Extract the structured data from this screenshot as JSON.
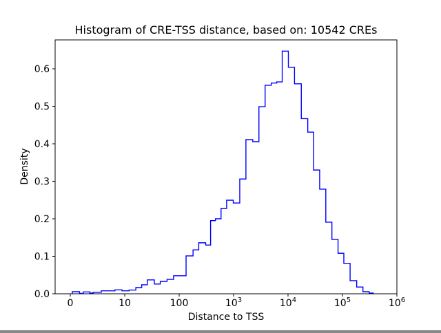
{
  "figure": {
    "background": "#ffffff",
    "frame_color": "#000000"
  },
  "chart_data": {
    "type": "histogram-step",
    "title": "Histogram of CRE-TSS distance, based on: 10542 CREs",
    "xlabel": "Distance to TSS",
    "ylabel": "Density",
    "line_color": "#0000ff",
    "xscale": "symlog",
    "linthresh": 10,
    "ylim": [
      0,
      0.677
    ],
    "xlim": [
      -2.2,
      1000000
    ],
    "grid": false,
    "legend": "none",
    "x_ticks": [
      {
        "value": 0,
        "label": "0"
      },
      {
        "value": 10,
        "label": "10"
      },
      {
        "value": 100,
        "label": "100"
      },
      {
        "value": 1000,
        "label": "10^3"
      },
      {
        "value": 10000,
        "label": "10^4"
      },
      {
        "value": 100000,
        "label": "10^5"
      },
      {
        "value": 1000000,
        "label": "10^6"
      }
    ],
    "y_ticks": [
      {
        "value": 0.0,
        "label": "0.0"
      },
      {
        "value": 0.1,
        "label": "0.1"
      },
      {
        "value": 0.2,
        "label": "0.2"
      },
      {
        "value": 0.3,
        "label": "0.3"
      },
      {
        "value": 0.4,
        "label": "0.4"
      },
      {
        "value": 0.5,
        "label": "0.5"
      },
      {
        "value": 0.6,
        "label": "0.6"
      }
    ],
    "bin_edges": [
      0.37,
      1.7,
      2.4,
      3.6,
      4.2,
      5.7,
      8.2,
      9.5,
      12,
      16,
      20.5,
      26,
      35,
      45,
      60,
      79,
      103,
      134,
      180,
      229,
      307,
      378,
      464,
      588,
      745,
      987,
      1298,
      1684,
      2250,
      2919,
      3791,
      4919,
      6196,
      7816,
      10145,
      13152,
      17535,
      23043,
      29443,
      38115,
      49420,
      64000,
      82957,
      106000,
      138174,
      182430,
      237684,
      309306,
      368978
    ],
    "densities": [
      0.0055,
      0.001,
      0.005,
      0.002,
      0.004,
      0.008,
      0.0105,
      0.008,
      0.01,
      0.0165,
      0.024,
      0.037,
      0.026,
      0.033,
      0.0385,
      0.048,
      0.048,
      0.101,
      0.117,
      0.136,
      0.13,
      0.195,
      0.2,
      0.2275,
      0.2495,
      0.242,
      0.306,
      0.411,
      0.4055,
      0.499,
      0.556,
      0.562,
      0.565,
      0.647,
      0.604,
      0.56,
      0.467,
      0.431,
      0.33,
      0.279,
      0.191,
      0.145,
      0.108,
      0.081,
      0.035,
      0.018,
      0.0055,
      0.002
    ]
  }
}
